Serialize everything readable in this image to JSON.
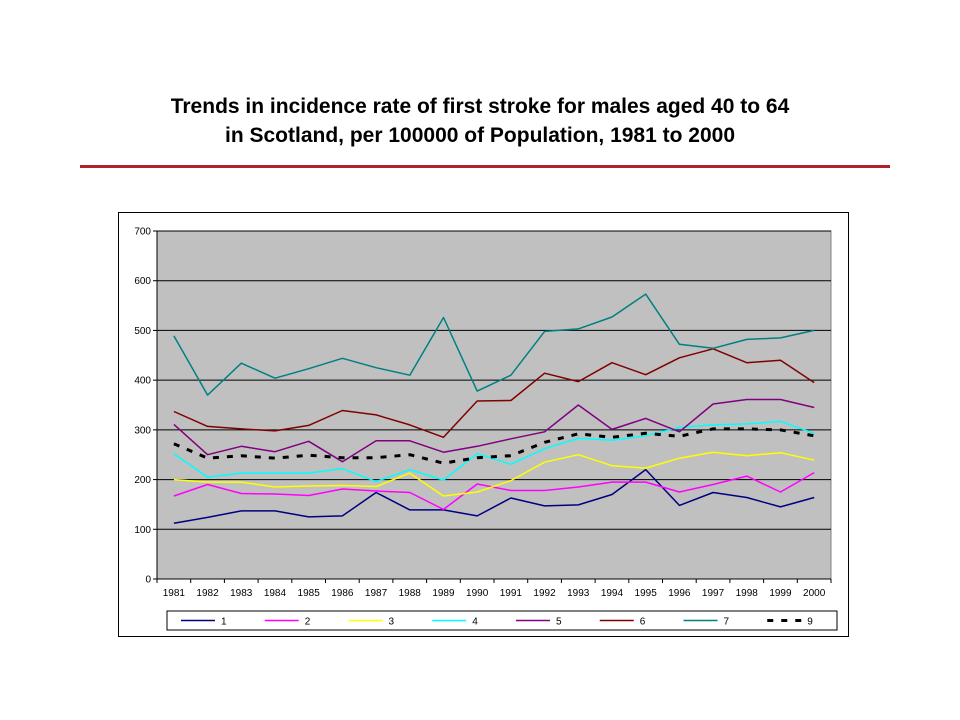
{
  "title": {
    "line1": "Trends in incidence rate of first stroke for males aged 40 to 64",
    "line2": "in Scotland,  per 100000 of Population, 1981 to 2000"
  },
  "colors": {
    "rule": "#b0222a",
    "plot_bg": "#c0c0c0"
  },
  "chart_data": {
    "type": "line",
    "title": "Trends in incidence rate of first stroke for males aged 40 to 64 in Scotland,  per 100000 of Population, 1981 to 2000",
    "xlabel": "",
    "ylabel": "",
    "ylim": [
      0,
      700
    ],
    "yticks": [
      0,
      100,
      200,
      300,
      400,
      500,
      600,
      700
    ],
    "grid": true,
    "legend_position": "bottom",
    "categories": [
      "1981",
      "1982",
      "1983",
      "1984",
      "1985",
      "1986",
      "1987",
      "1988",
      "1989",
      "1990",
      "1991",
      "1992",
      "1993",
      "1994",
      "1995",
      "1996",
      "1997",
      "1998",
      "1999",
      "2000"
    ],
    "series": [
      {
        "name": "1",
        "color": "#000080",
        "dash": false,
        "values": [
          112,
          124,
          137,
          137,
          125,
          127,
          174,
          139,
          139,
          127,
          163,
          147,
          149,
          170,
          220,
          148,
          174,
          164,
          145,
          164
        ]
      },
      {
        "name": "2",
        "color": "#ff00ff",
        "dash": false,
        "values": [
          167,
          190,
          172,
          171,
          168,
          181,
          177,
          174,
          140,
          191,
          178,
          178,
          185,
          195,
          195,
          175,
          190,
          207,
          175,
          214
        ]
      },
      {
        "name": "3",
        "color": "#ffff00",
        "dash": false,
        "values": [
          200,
          195,
          195,
          185,
          187,
          188,
          186,
          213,
          167,
          175,
          198,
          235,
          250,
          228,
          223,
          243,
          255,
          248,
          254,
          239
        ]
      },
      {
        "name": "4",
        "color": "#00ffff",
        "dash": false,
        "values": [
          252,
          205,
          213,
          213,
          213,
          222,
          196,
          220,
          199,
          252,
          231,
          262,
          283,
          279,
          288,
          305,
          310,
          312,
          317,
          293
        ]
      },
      {
        "name": "5",
        "color": "#800080",
        "dash": false,
        "values": [
          311,
          250,
          267,
          256,
          277,
          236,
          278,
          278,
          255,
          267,
          282,
          296,
          350,
          301,
          323,
          296,
          352,
          361,
          361,
          345
        ]
      },
      {
        "name": "6",
        "color": "#800000",
        "dash": false,
        "values": [
          337,
          307,
          302,
          298,
          309,
          339,
          330,
          310,
          285,
          358,
          359,
          414,
          397,
          435,
          411,
          445,
          463,
          435,
          440,
          395
        ]
      },
      {
        "name": "7",
        "color": "#008080",
        "dash": false,
        "values": [
          489,
          370,
          434,
          404,
          423,
          444,
          425,
          410,
          526,
          378,
          410,
          498,
          503,
          527,
          573,
          472,
          464,
          482,
          485,
          500
        ]
      },
      {
        "name": "9",
        "color": "#000000",
        "dash": true,
        "values": [
          272,
          243,
          248,
          243,
          249,
          244,
          244,
          250,
          233,
          244,
          248,
          275,
          292,
          285,
          293,
          287,
          302,
          302,
          300,
          288
        ]
      }
    ]
  }
}
